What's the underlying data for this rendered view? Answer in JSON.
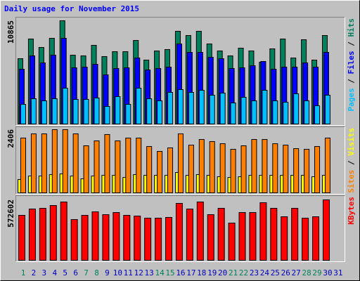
{
  "title": "Daily usage for November 2015",
  "legend_separator": " / ",
  "chart_data": [
    {
      "type": "bar",
      "ylim": [
        0,
        10865
      ],
      "yticks": [
        10865
      ],
      "grid": false,
      "series": [
        {
          "name": "Hits",
          "color": "#00805c",
          "values": [
            6901,
            8956,
            8075,
            9030,
            10865,
            7268,
            7194,
            8296,
            7121,
            7635,
            7635,
            8809,
            6754,
            7708,
            7855,
            9764,
            9323,
            9764,
            8442,
            7708,
            7194,
            8002,
            7708,
            6534,
            7928,
            8956,
            6974,
            8883,
            6754,
            9323,
            null
          ]
        },
        {
          "name": "Files",
          "color": "#0000ff",
          "values": [
            5800,
            7194,
            6460,
            7268,
            9030,
            5946,
            6020,
            6313,
            5212,
            5873,
            5946,
            6974,
            5726,
            5873,
            6020,
            8442,
            7561,
            7561,
            7047,
            6900,
            5873,
            5946,
            6166,
            6607,
            5800,
            6020,
            6020,
            6460,
            6020,
            7561,
            null
          ]
        },
        {
          "name": "Pages",
          "color": "#00c0ff",
          "values": [
            2129,
            2716,
            2496,
            2716,
            3817,
            2643,
            2643,
            2790,
            1909,
            2936,
            2129,
            3817,
            2716,
            2496,
            3377,
            3671,
            3377,
            3597,
            3083,
            3303,
            2276,
            2863,
            2496,
            3597,
            2496,
            2349,
            3230,
            2496,
            1982,
            3083,
            null
          ]
        }
      ]
    },
    {
      "type": "bar",
      "ylim": [
        0,
        2406
      ],
      "yticks": [
        2406
      ],
      "grid": false,
      "series": [
        {
          "name": "Visits",
          "color": "#ffff00",
          "values": [
            529,
            661,
            661,
            714,
            740,
            661,
            555,
            661,
            687,
            687,
            608,
            714,
            687,
            687,
            687,
            793,
            687,
            714,
            687,
            635,
            608,
            635,
            687,
            687,
            687,
            687,
            687,
            687,
            635,
            687,
            null
          ]
        },
        {
          "name": "Sites",
          "color": "#ff8000",
          "values": [
            2089,
            2247,
            2247,
            2406,
            2406,
            2247,
            1798,
            1983,
            2221,
            1983,
            2089,
            2089,
            1771,
            1586,
            1719,
            2247,
            1824,
            2036,
            1957,
            1877,
            1666,
            1798,
            2036,
            2036,
            1877,
            1824,
            1692,
            1666,
            1771,
            2089,
            null
          ]
        }
      ]
    },
    {
      "type": "bar",
      "ylim": [
        0,
        572602
      ],
      "yticks": [
        572602
      ],
      "grid": false,
      "categories": [
        "1",
        "2",
        "3",
        "4",
        "5",
        "6",
        "7",
        "8",
        "9",
        "10",
        "11",
        "12",
        "13",
        "14",
        "15",
        "16",
        "17",
        "18",
        "19",
        "20",
        "21",
        "22",
        "23",
        "24",
        "25",
        "26",
        "27",
        "28",
        "29",
        "30",
        "31"
      ],
      "category_colors": [
        "#00805c",
        "#0000c0",
        "#0000c0",
        "#0000c0",
        "#0000c0",
        "#0000c0",
        "#00805c",
        "#00805c",
        "#0000c0",
        "#0000c0",
        "#0000c0",
        "#0000c0",
        "#0000c0",
        "#00805c",
        "#00805c",
        "#0000c0",
        "#0000c0",
        "#0000c0",
        "#0000c0",
        "#0000c0",
        "#00805c",
        "#00805c",
        "#0000c0",
        "#0000c0",
        "#0000c0",
        "#0000c0",
        "#0000c0",
        "#00805c",
        "#00805c",
        "#0000c0",
        "#0000c0"
      ],
      "series": [
        {
          "name": "KBytes",
          "color": "#ff0000",
          "values": [
            427804,
            487038,
            493620,
            519946,
            552854,
            388314,
            427804,
            460712,
            434386,
            454130,
            427804,
            421222,
            401478,
            401478,
            408059,
            539691,
            487038,
            552854,
            434386,
            493620,
            355406,
            454130,
            454130,
            546272,
            493620,
            414641,
            493620,
            401478,
            414641,
            572602,
            null
          ]
        }
      ]
    }
  ]
}
